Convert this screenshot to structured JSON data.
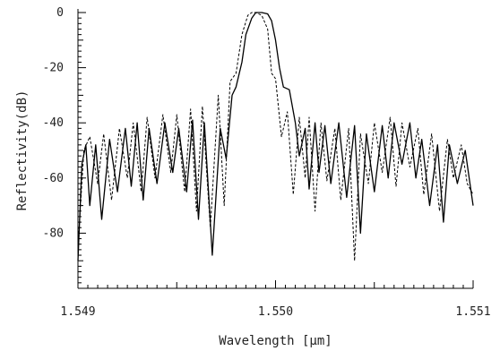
{
  "chart_data": {
    "type": "line",
    "title": "",
    "xlabel": "Wavelength [μm]",
    "ylabel": "Reflectivity(dB)",
    "xlim": [
      1.549,
      1.551
    ],
    "ylim": [
      -100,
      0
    ],
    "x_ticks": [
      {
        "value": 1.549,
        "label": "1.549"
      },
      {
        "value": 1.55,
        "label": "1.550"
      },
      {
        "value": 1.551,
        "label": "1.551"
      }
    ],
    "y_ticks": [
      {
        "value": 0,
        "label": "0"
      },
      {
        "value": -20,
        "label": "-20"
      },
      {
        "value": -40,
        "label": "-40"
      },
      {
        "value": -60,
        "label": "-60"
      },
      {
        "value": -80,
        "label": "-80"
      }
    ],
    "grid": false,
    "series": [
      {
        "style": "solid",
        "color": "#000000",
        "x": [
          1.549,
          1.54902,
          1.54904,
          1.54906,
          1.54909,
          1.54912,
          1.54916,
          1.5492,
          1.54924,
          1.54927,
          1.5493,
          1.54933,
          1.54936,
          1.5494,
          1.54944,
          1.54948,
          1.54951,
          1.54955,
          1.54958,
          1.54961,
          1.54964,
          1.54968,
          1.54972,
          1.54975,
          1.54978,
          1.5498,
          1.54983,
          1.54985,
          1.54988,
          1.5499,
          1.54993,
          1.54996,
          1.54998,
          1.55,
          1.55002,
          1.55004,
          1.55007,
          1.5501,
          1.55012,
          1.55015,
          1.55017,
          1.5502,
          1.55022,
          1.55025,
          1.55028,
          1.55032,
          1.55036,
          1.5504,
          1.55043,
          1.55046,
          1.5505,
          1.55054,
          1.55057,
          1.5506,
          1.55064,
          1.55068,
          1.55071,
          1.55074,
          1.55078,
          1.55082,
          1.55085,
          1.55088,
          1.55092,
          1.55096,
          1.55099,
          1.551
        ],
        "y": [
          -90,
          -55,
          -48,
          -70,
          -48,
          -75,
          -46,
          -65,
          -42,
          -63,
          -40,
          -68,
          -42,
          -62,
          -40,
          -58,
          -42,
          -65,
          -39,
          -75,
          -40,
          -88,
          -42,
          -53,
          -30,
          -27,
          -18,
          -8,
          -2,
          0,
          0,
          -0.5,
          -3,
          -10,
          -20,
          -27,
          -28,
          -40,
          -52,
          -42,
          -64,
          -40,
          -58,
          -41,
          -62,
          -40,
          -67,
          -41,
          -80,
          -44,
          -65,
          -41,
          -60,
          -40,
          -55,
          -40,
          -60,
          -46,
          -70,
          -48,
          -76,
          -48,
          -62,
          -50,
          -65,
          -70
        ]
      },
      {
        "style": "dashed",
        "color": "#000000",
        "x": [
          1.549,
          1.54903,
          1.54906,
          1.5491,
          1.54913,
          1.54917,
          1.54921,
          1.54925,
          1.54928,
          1.54932,
          1.54935,
          1.54939,
          1.54943,
          1.54947,
          1.5495,
          1.54954,
          1.54957,
          1.5496,
          1.54963,
          1.54967,
          1.54971,
          1.54974,
          1.54977,
          1.5498,
          1.54983,
          1.54986,
          1.54988,
          1.5499,
          1.54993,
          1.54996,
          1.54998,
          1.55,
          1.55003,
          1.55006,
          1.55009,
          1.55012,
          1.55015,
          1.55017,
          1.5502,
          1.55023,
          1.55026,
          1.5503,
          1.55033,
          1.55037,
          1.5504,
          1.55043,
          1.55047,
          1.5505,
          1.55054,
          1.55058,
          1.55061,
          1.55064,
          1.55068,
          1.55072,
          1.55075,
          1.55079,
          1.55083,
          1.55087,
          1.5509,
          1.55094,
          1.55097,
          1.551
        ],
        "y": [
          -85,
          -50,
          -45,
          -62,
          -44,
          -68,
          -42,
          -60,
          -40,
          -65,
          -38,
          -60,
          -37,
          -58,
          -37,
          -65,
          -35,
          -72,
          -34,
          -78,
          -30,
          -70,
          -25,
          -22,
          -8,
          -1,
          0,
          0,
          -1,
          -6,
          -22,
          -24,
          -45,
          -36,
          -66,
          -38,
          -60,
          -38,
          -72,
          -40,
          -61,
          -42,
          -68,
          -42,
          -90,
          -44,
          -62,
          -40,
          -58,
          -38,
          -63,
          -40,
          -56,
          -42,
          -66,
          -44,
          -72,
          -46,
          -60,
          -48,
          -62,
          -66
        ]
      }
    ]
  }
}
